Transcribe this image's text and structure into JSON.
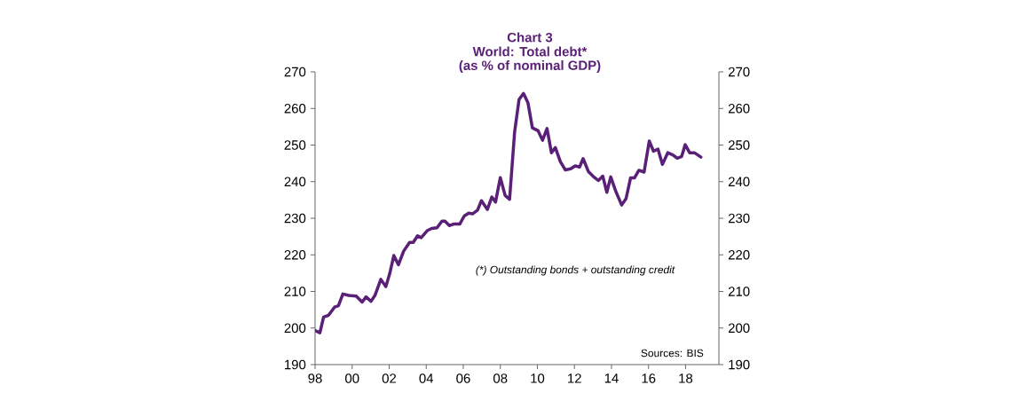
{
  "chart_data": {
    "type": "line",
    "title": "World: Total debt*",
    "subtitle": "(as % of nominal GDP)",
    "annotations": [
      "Chart 3",
      "(*) Outstanding bonds + outstanding credit",
      "Sources: BIS"
    ],
    "x": [
      1998.0,
      1998.26,
      1998.46,
      1998.73,
      1999.05,
      1999.26,
      1999.5,
      1999.82,
      2000.22,
      2000.54,
      2000.75,
      2001.02,
      2001.23,
      2001.55,
      2001.82,
      2002.03,
      2002.25,
      2002.5,
      2002.78,
      2003.1,
      2003.3,
      2003.53,
      2003.73,
      2004.05,
      2004.29,
      2004.58,
      2004.85,
      2005.01,
      2005.25,
      2005.49,
      2005.81,
      2006.05,
      2006.29,
      2006.5,
      2006.77,
      2006.98,
      2007.3,
      2007.54,
      2007.74,
      2008.0,
      2008.26,
      2008.5,
      2008.77,
      2009.01,
      2009.25,
      2009.49,
      2009.73,
      2010.04,
      2010.28,
      2010.52,
      2010.76,
      2010.97,
      2011.24,
      2011.51,
      2011.8,
      2012.04,
      2012.28,
      2012.47,
      2012.76,
      2013.0,
      2013.29,
      2013.53,
      2013.75,
      2013.96,
      2014.23,
      2014.55,
      2014.79,
      2015.03,
      2015.24,
      2015.48,
      2015.76,
      2016.04,
      2016.27,
      2016.51,
      2016.75,
      2017.04,
      2017.31,
      2017.55,
      2017.79,
      2017.98,
      2018.22,
      2018.48,
      2018.83
    ],
    "series": [
      {
        "color": "#5a2078",
        "values": [
          199.3,
          198.7,
          203.0,
          203.5,
          205.7,
          206.1,
          209.3,
          208.9,
          208.7,
          207.1,
          208.5,
          207.3,
          208.9,
          213.3,
          211.3,
          214.9,
          219.8,
          217.3,
          221.0,
          223.4,
          223.4,
          225.2,
          224.7,
          226.6,
          227.2,
          227.4,
          229.2,
          229.2,
          228.0,
          228.4,
          228.4,
          230.6,
          231.4,
          231.2,
          232.2,
          234.8,
          232.4,
          235.8,
          234.4,
          241.1,
          236.2,
          235.2,
          253.5,
          262.4,
          264.1,
          261.6,
          254.7,
          253.9,
          251.3,
          254.5,
          247.9,
          249.3,
          245.5,
          243.2,
          243.5,
          244.3,
          244.0,
          246.3,
          242.7,
          241.5,
          240.3,
          241.5,
          237.1,
          241.3,
          237.4,
          233.6,
          235.4,
          241.0,
          241.0,
          243.1,
          242.6,
          251.1,
          248.3,
          248.9,
          244.7,
          247.9,
          247.3,
          246.4,
          246.9,
          250.1,
          247.9,
          247.9,
          246.7
        ]
      }
    ],
    "xlim": [
      1998,
      2019.8
    ],
    "xticks": [
      {
        "value": 1998,
        "label": "98"
      },
      {
        "value": 2000,
        "label": "00"
      },
      {
        "value": 2002,
        "label": "02"
      },
      {
        "value": 2004,
        "label": "04"
      },
      {
        "value": 2006,
        "label": "06"
      },
      {
        "value": 2008,
        "label": "08"
      },
      {
        "value": 2010,
        "label": "10"
      },
      {
        "value": 2012,
        "label": "12"
      },
      {
        "value": 2014,
        "label": "14"
      },
      {
        "value": 2016,
        "label": "16"
      },
      {
        "value": 2018,
        "label": "18"
      }
    ],
    "ylim": [
      190,
      270
    ],
    "yticks": [
      190,
      200,
      210,
      220,
      230,
      240,
      250,
      260,
      270
    ],
    "y2lim": [
      190,
      270
    ],
    "y2ticks": [
      190,
      200,
      210,
      220,
      230,
      240,
      250,
      260,
      270
    ],
    "grid": false,
    "legend": false,
    "marker": "none",
    "line_style": "solid"
  }
}
